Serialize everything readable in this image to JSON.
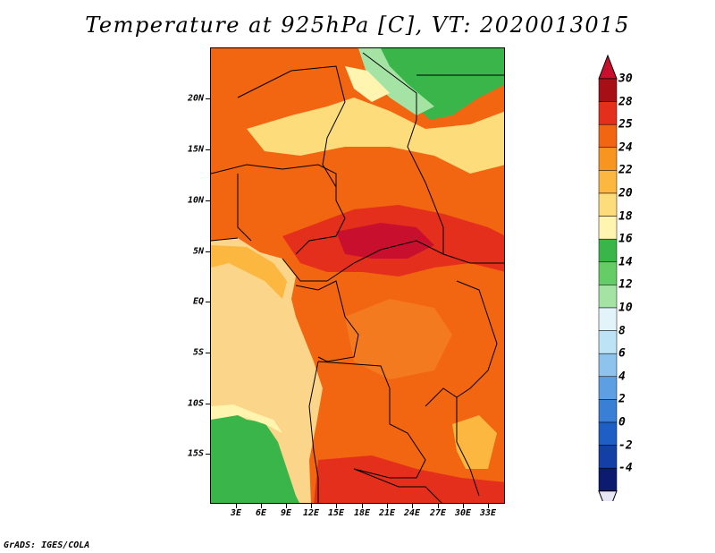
{
  "title": "Temperature at 925hPa [C], VT: 2020013015",
  "footer": "GrADS: IGES/COLA",
  "lat_labels": [
    "20N",
    "15N",
    "10N",
    "5N",
    "EQ",
    "5S",
    "10S",
    "15S"
  ],
  "lon_labels": [
    "3E",
    "6E",
    "9E",
    "12E",
    "15E",
    "18E",
    "21E",
    "24E",
    "27E",
    "30E",
    "33E"
  ],
  "colorbar": {
    "labels": [
      "30",
      "28",
      "25",
      "24",
      "22",
      "20",
      "18",
      "16",
      "14",
      "12",
      "10",
      "8",
      "6",
      "4",
      "2",
      "0",
      "-2",
      "-4"
    ],
    "colors": [
      "#a50f15",
      "#e32f1b",
      "#f26511",
      "#f79520",
      "#fbb73f",
      "#fddc7c",
      "#fff4b0",
      "#3ab54a",
      "#66cc66",
      "#a4e3a4",
      "#e2f4fa",
      "#bde3f6",
      "#8ec3ee",
      "#5e9fe3",
      "#3a7fd6",
      "#1f5ec4",
      "#143fa6",
      "#0c1a70"
    ],
    "top_color": "#c8102e",
    "bottom_color": "#e6e6f5"
  }
}
